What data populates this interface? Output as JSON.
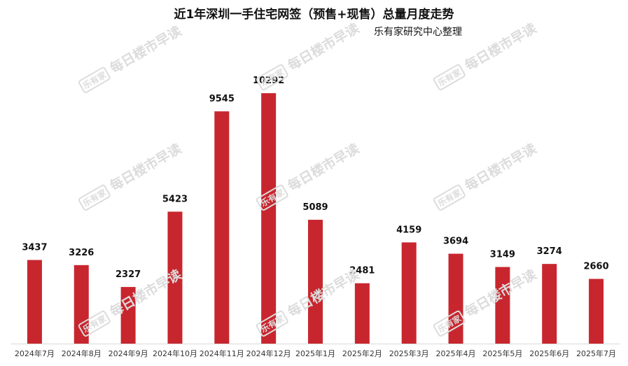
{
  "chart_data": {
    "type": "bar",
    "title": "近1年深圳一手住宅网签（预售+现售）总量月度走势",
    "subtitle": "乐有家研究中心整理",
    "categories": [
      "2024年7月",
      "2024年8月",
      "2024年9月",
      "2024年10月",
      "2024年11月",
      "2024年12月",
      "2025年1月",
      "2025年2月",
      "2025年3月",
      "2025年4月",
      "2025年5月",
      "2025年6月",
      "2025年7月"
    ],
    "values": [
      3437,
      3226,
      2327,
      5423,
      9545,
      10292,
      5089,
      2481,
      4159,
      3694,
      3149,
      3274,
      2660
    ],
    "ylim": [
      0,
      10900
    ],
    "xlabel": "",
    "ylabel": "",
    "bar_color": "#c8262e",
    "data_labels": true,
    "grid": false
  },
  "watermark": {
    "logo": "乐有家",
    "text": "每日楼市早读"
  }
}
